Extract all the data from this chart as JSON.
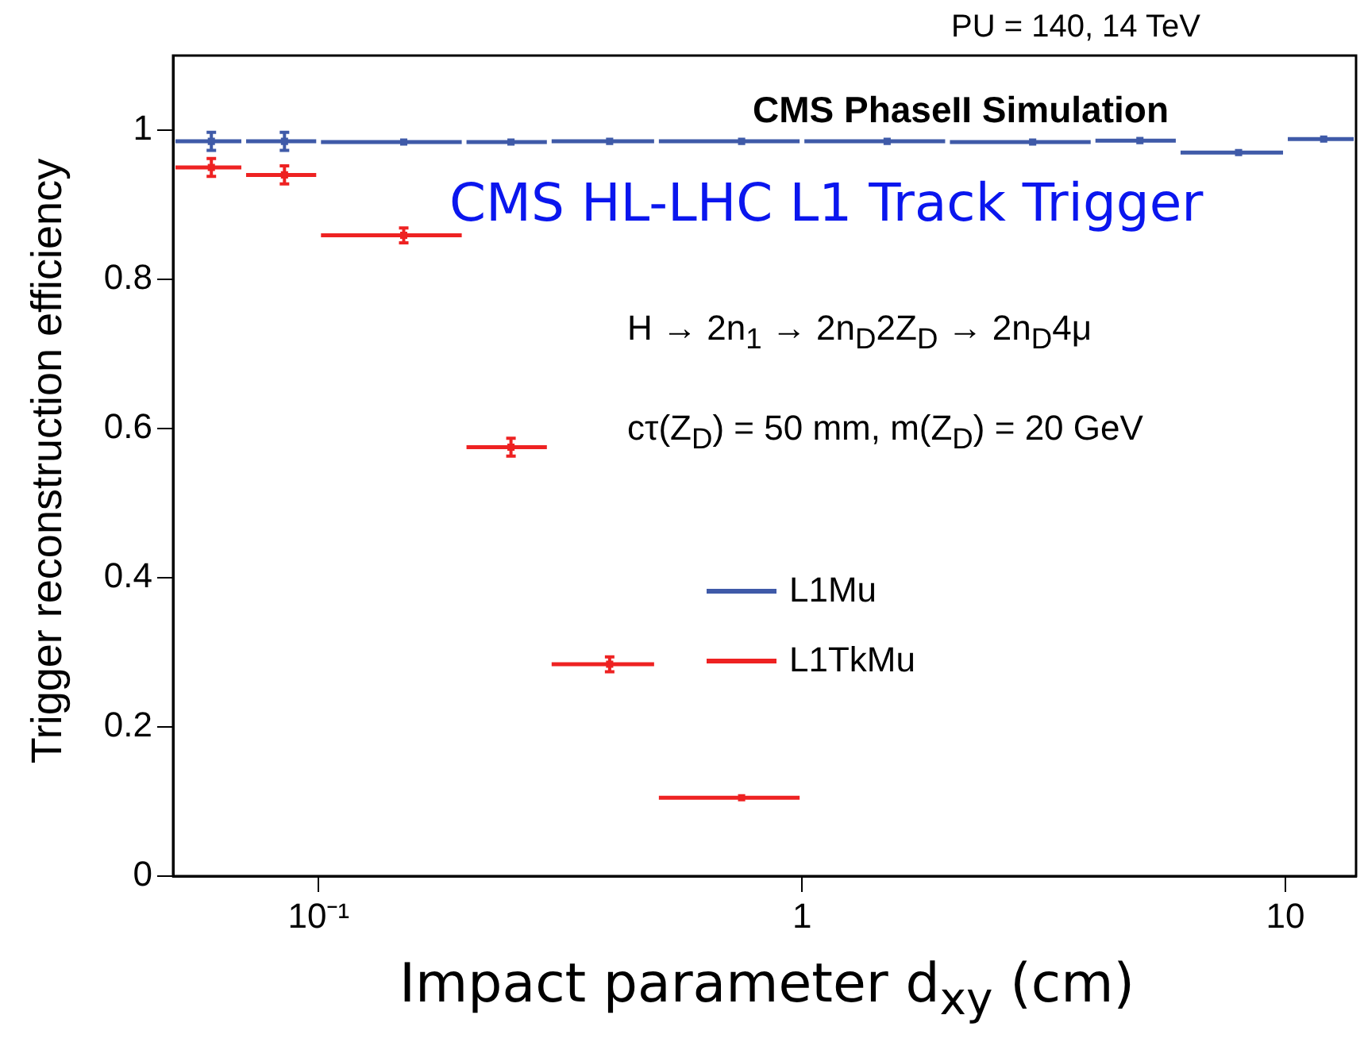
{
  "chart_data": {
    "type": "scatter",
    "xlabel": "Impact parameter d$_{xy}$ (cm)",
    "ylabel": "Trigger reconstruction efficiency",
    "annotations": [
      "PU = 140, 14 TeV",
      "CMS PhaseII Simulation",
      "CMS HL-LHC L1 Track Trigger",
      "H → 2n$_{1}$ → 2n$_{D}$2Z$_{D}$ → 2n$_{D}$4μ",
      "cτ(Z$_{D}$) = 50 mm, m(Z$_{D}$) = 20 GeV"
    ],
    "log": "x",
    "grid": false,
    "legend": "right",
    "marker": "square",
    "xlim": [
      0.05,
      14
    ],
    "xticks": [
      {
        "value": 0.1,
        "label": "10⁻¹"
      },
      1,
      10
    ],
    "ylim": [
      0,
      1.1
    ],
    "yticks": [
      0,
      0.2,
      0.4,
      0.6,
      0.8,
      1
    ],
    "series": [
      {
        "name": "L1Mu",
        "color": "#3f5aa8",
        "x": [
          0.06,
          0.085,
          0.15,
          0.25,
          0.4,
          0.75,
          1.5,
          3,
          5,
          8,
          12
        ],
        "values": [
          0.985,
          0.985,
          0.984,
          0.984,
          0.985,
          0.985,
          0.985,
          0.984,
          0.986,
          0.97,
          0.988
        ],
        "xerrors": [
          [
            0.05,
            0.07
          ],
          [
            0.07,
            0.1
          ],
          [
            0.1,
            0.2
          ],
          [
            0.2,
            0.3
          ],
          [
            0.3,
            0.5
          ],
          [
            0.5,
            1
          ],
          [
            1,
            2
          ],
          [
            2,
            4
          ],
          [
            4,
            6
          ],
          [
            6,
            10
          ],
          [
            10,
            14
          ]
        ],
        "errors": [
          0.012,
          0.012,
          null,
          null,
          null,
          null,
          null,
          null,
          null,
          null,
          null
        ]
      },
      {
        "name": "L1TkMu",
        "color": "#ee2222",
        "x": [
          0.06,
          0.085,
          0.15,
          0.25,
          0.4,
          0.75
        ],
        "values": [
          0.95,
          0.94,
          0.859,
          0.575,
          0.284,
          0.105
        ],
        "xerrors": [
          [
            0.05,
            0.07
          ],
          [
            0.07,
            0.1
          ],
          [
            0.1,
            0.2
          ],
          [
            0.2,
            0.3
          ],
          [
            0.3,
            0.5
          ],
          [
            0.5,
            1
          ]
        ],
        "errors": [
          0.012,
          0.012,
          0.01,
          0.012,
          0.01,
          null
        ]
      }
    ]
  }
}
